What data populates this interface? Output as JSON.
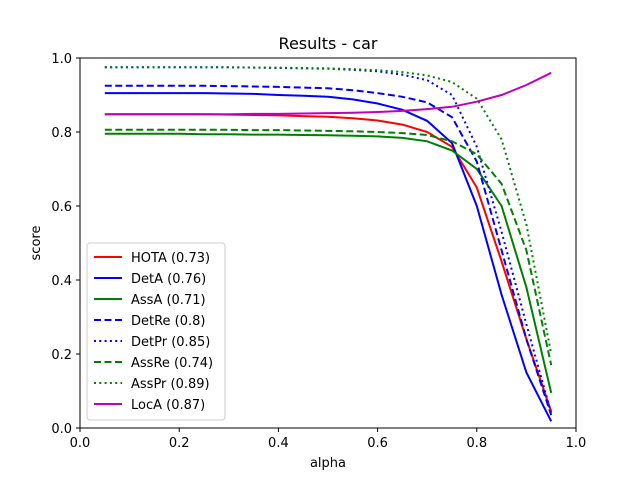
{
  "chart_data": {
    "type": "line",
    "title": "Results - car",
    "xlabel": "alpha",
    "ylabel": "score",
    "xlim": [
      0.0,
      1.0
    ],
    "ylim": [
      0.0,
      1.0
    ],
    "xticks": [
      "0.0",
      "0.2",
      "0.4",
      "0.6",
      "0.8",
      "1.0"
    ],
    "yticks": [
      "0.0",
      "0.2",
      "0.4",
      "0.6",
      "0.8",
      "1.0"
    ],
    "grid": false,
    "legend_position": "lower-left",
    "x": [
      0.05,
      0.1,
      0.15,
      0.2,
      0.25,
      0.3,
      0.35,
      0.4,
      0.45,
      0.5,
      0.55,
      0.6,
      0.65,
      0.7,
      0.75,
      0.8,
      0.85,
      0.9,
      0.95
    ],
    "series": [
      {
        "name": "HOTA (0.73)",
        "color": "#ff0000",
        "dash": "solid",
        "values": [
          0.848,
          0.848,
          0.848,
          0.848,
          0.848,
          0.847,
          0.846,
          0.845,
          0.843,
          0.841,
          0.837,
          0.831,
          0.82,
          0.8,
          0.76,
          0.65,
          0.45,
          0.24,
          0.045
        ]
      },
      {
        "name": "DetA (0.76)",
        "color": "#0000ff",
        "dash": "solid",
        "values": [
          0.905,
          0.905,
          0.905,
          0.905,
          0.905,
          0.904,
          0.903,
          0.9,
          0.898,
          0.895,
          0.888,
          0.877,
          0.86,
          0.83,
          0.77,
          0.6,
          0.36,
          0.15,
          0.018
        ]
      },
      {
        "name": "AssA (0.71)",
        "color": "#008000",
        "dash": "solid",
        "values": [
          0.795,
          0.795,
          0.795,
          0.795,
          0.794,
          0.794,
          0.793,
          0.793,
          0.792,
          0.791,
          0.79,
          0.788,
          0.784,
          0.775,
          0.75,
          0.7,
          0.6,
          0.38,
          0.095
        ]
      },
      {
        "name": "DetRe (0.8)",
        "color": "#0000ff",
        "dash": "dashed",
        "values": [
          0.925,
          0.925,
          0.925,
          0.925,
          0.925,
          0.924,
          0.923,
          0.922,
          0.92,
          0.918,
          0.913,
          0.905,
          0.895,
          0.88,
          0.84,
          0.72,
          0.48,
          0.24,
          0.035
        ]
      },
      {
        "name": "DetPr (0.85)",
        "color": "#0000ff",
        "dash": "dotted",
        "values": [
          0.975,
          0.975,
          0.975,
          0.975,
          0.975,
          0.975,
          0.974,
          0.973,
          0.972,
          0.971,
          0.968,
          0.964,
          0.955,
          0.94,
          0.9,
          0.76,
          0.53,
          0.28,
          0.04
        ]
      },
      {
        "name": "AssRe (0.74)",
        "color": "#008000",
        "dash": "dashed",
        "values": [
          0.806,
          0.806,
          0.806,
          0.806,
          0.806,
          0.806,
          0.805,
          0.805,
          0.804,
          0.803,
          0.802,
          0.8,
          0.797,
          0.792,
          0.775,
          0.74,
          0.66,
          0.48,
          0.17
        ]
      },
      {
        "name": "AssPr (0.89)",
        "color": "#008000",
        "dash": "dotted",
        "values": [
          0.975,
          0.975,
          0.975,
          0.975,
          0.975,
          0.975,
          0.974,
          0.974,
          0.973,
          0.972,
          0.97,
          0.967,
          0.962,
          0.953,
          0.935,
          0.89,
          0.78,
          0.55,
          0.2
        ]
      },
      {
        "name": "LocA (0.87)",
        "color": "#bf00bf",
        "dash": "solid",
        "values": [
          0.848,
          0.848,
          0.848,
          0.848,
          0.848,
          0.848,
          0.849,
          0.849,
          0.85,
          0.851,
          0.852,
          0.854,
          0.857,
          0.862,
          0.868,
          0.882,
          0.9,
          0.927,
          0.96
        ]
      }
    ]
  }
}
